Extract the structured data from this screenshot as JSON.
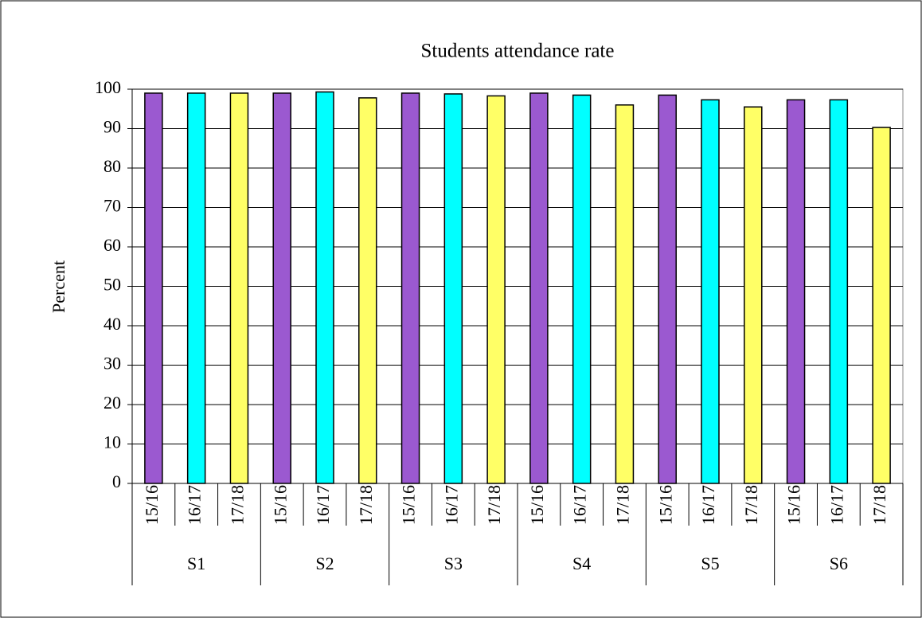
{
  "chart_data": {
    "type": "bar",
    "title": "Students attendance rate",
    "y_label": "Percent",
    "groups": [
      "S1",
      "S2",
      "S3",
      "S4",
      "S5",
      "S6"
    ],
    "categories": [
      "15/16",
      "16/17",
      "17/18",
      "15/16",
      "16/17",
      "17/18",
      "15/16",
      "16/17",
      "17/18",
      "15/16",
      "16/17",
      "17/18",
      "15/16",
      "16/17",
      "17/18",
      "15/16",
      "16/17",
      "17/18"
    ],
    "values": [
      99,
      99,
      99,
      99,
      99.3,
      97.8,
      99,
      98.8,
      98.3,
      99,
      98.5,
      96,
      98.5,
      97.3,
      95.5,
      97.3,
      97.3,
      90.3
    ],
    "colors": [
      "#9b59d0",
      "#00ffff",
      "#ffff66",
      "#9b59d0",
      "#00ffff",
      "#ffff66",
      "#9b59d0",
      "#00ffff",
      "#ffff66",
      "#9b59d0",
      "#00ffff",
      "#ffff66",
      "#9b59d0",
      "#00ffff",
      "#ffff66",
      "#9b59d0",
      "#00ffff",
      "#ffff66"
    ],
    "ylim": [
      0,
      100
    ],
    "yticks": [
      0,
      10,
      20,
      30,
      40,
      50,
      60,
      70,
      80,
      90,
      100
    ],
    "grid": true
  }
}
